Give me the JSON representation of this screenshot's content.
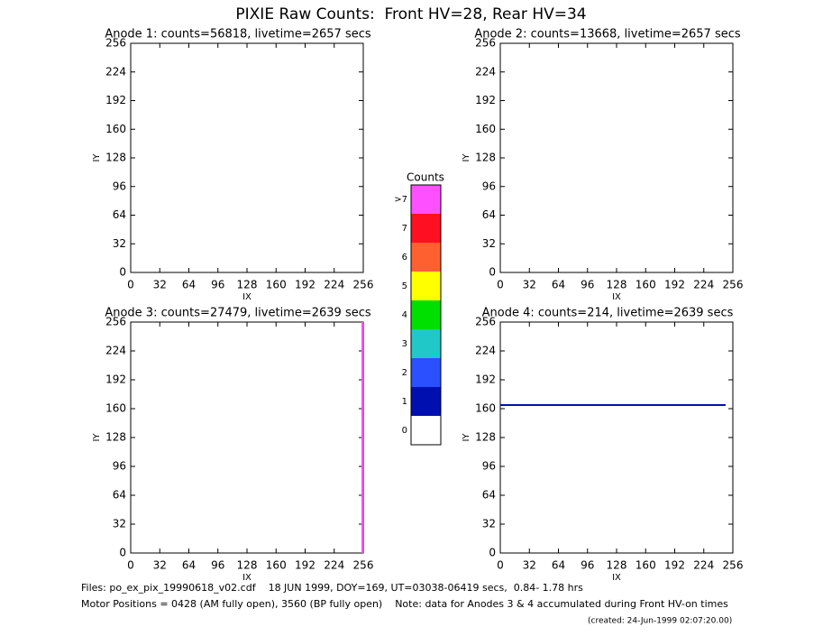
{
  "title": "PIXIE Raw Counts:  Front HV=28, Rear HV=34",
  "chart_data": [
    {
      "type": "image",
      "title": "Anode 1: counts=56818, livetime=2657 secs",
      "x_label": "IX",
      "y_label": "IY",
      "xlim": [
        0,
        256
      ],
      "xticks": [
        0,
        32,
        64,
        96,
        128,
        160,
        192,
        224,
        256
      ],
      "ylim": [
        0,
        256
      ],
      "yticks": [
        0,
        32,
        64,
        96,
        128,
        160,
        192,
        224,
        256
      ]
    },
    {
      "type": "image",
      "title": "Anode 2: counts=13668, livetime=2657 secs",
      "x_label": "IX",
      "y_label": "IY",
      "xlim": [
        0,
        256
      ],
      "xticks": [
        0,
        32,
        64,
        96,
        128,
        160,
        192,
        224,
        256
      ],
      "ylim": [
        0,
        256
      ],
      "yticks": [
        0,
        32,
        64,
        96,
        128,
        160,
        192,
        224,
        256
      ]
    },
    {
      "type": "line",
      "title": "Anode 3: counts=27479, livetime=2639 secs",
      "x_label": "IX",
      "y_label": "IY",
      "xlim": [
        0,
        256
      ],
      "xticks": [
        0,
        32,
        64,
        96,
        128,
        160,
        192,
        224,
        256
      ],
      "ylim": [
        0,
        256
      ],
      "yticks": [
        0,
        32,
        64,
        96,
        128,
        160,
        192,
        224,
        256
      ],
      "x": [
        255,
        255
      ],
      "values": [
        0,
        256
      ],
      "color": "#ff50ff"
    },
    {
      "type": "line",
      "title": "Anode 4: counts=214, livetime=2639 secs",
      "x_label": "IX",
      "y_label": "IY",
      "xlim": [
        0,
        256
      ],
      "xticks": [
        0,
        32,
        64,
        96,
        128,
        160,
        192,
        224,
        256
      ],
      "ylim": [
        0,
        256
      ],
      "yticks": [
        0,
        32,
        64,
        96,
        128,
        160,
        192,
        224,
        256
      ],
      "x": [
        0,
        248
      ],
      "values": [
        164,
        164
      ],
      "color": "#0010b0"
    }
  ],
  "colorbar": {
    "title": "Counts",
    "labels": [
      "0",
      "1",
      "2",
      "3",
      "4",
      "5",
      "6",
      "7",
      ">7"
    ],
    "colors": [
      "#ffffff",
      "#0010b0",
      "#2a50ff",
      "#20c8c8",
      "#00e000",
      "#ffff00",
      "#ff6030",
      "#ff1020",
      "#ff50ff"
    ]
  },
  "footer": [
    "Files: po_ex_pix_19990618_v02.cdf    18 JUN 1999, DOY=169, UT=03038-06419 secs,  0.84- 1.78 hrs",
    "Motor Positions = 0428 (AM fully open), 3560 (BP fully open)    Note: data for Anodes 3 & 4 accumulated during Front HV-on times",
    "(created: 24-Jun-1999 02:07:20.00)"
  ]
}
